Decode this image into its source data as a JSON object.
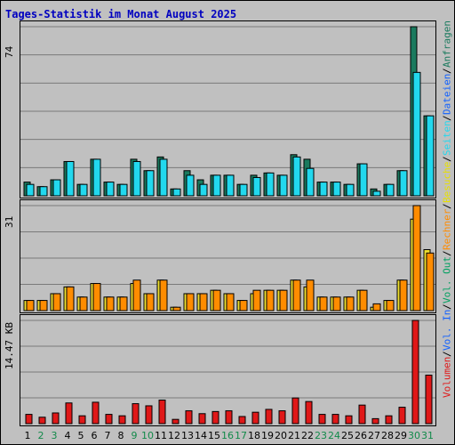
{
  "title": "Tages-Statistik im Monat August 2025",
  "colors": {
    "background": "#c0c0c0",
    "title": "#0000c0",
    "anfragen": "#1a7a5e",
    "dateien": "#22d8ee",
    "seiten": "#22d8ee",
    "besuche": "#f0e030",
    "rechner": "#ff8c00",
    "volumen": "#e01818",
    "weekday_label": "#000000",
    "weekend_label": "#128a4a",
    "gridline": "#7a7a7a"
  },
  "legend": [
    {
      "text": "Anfragen",
      "color": "#1a7a5e"
    },
    {
      "text": " / ",
      "color": "#000000"
    },
    {
      "text": "Dateien",
      "color": "#1060ff"
    },
    {
      "text": " / ",
      "color": "#000000"
    },
    {
      "text": "Seiten",
      "color": "#22d8ee"
    },
    {
      "text": " / ",
      "color": "#000000"
    },
    {
      "text": "Besuche",
      "color": "#e8e000"
    },
    {
      "text": " / ",
      "color": "#000000"
    },
    {
      "text": "Rechner",
      "color": "#ff8c00"
    },
    {
      "text": " / ",
      "color": "#000000"
    },
    {
      "text": "Vol. Out",
      "color": "#00a060"
    },
    {
      "text": " / ",
      "color": "#000000"
    },
    {
      "text": "Vol. In",
      "color": "#1060ff"
    },
    {
      "text": " / ",
      "color": "#000000"
    },
    {
      "text": "Volumen",
      "color": "#e01818"
    }
  ],
  "chart_data": [
    {
      "type": "bar",
      "panel": "top",
      "ymax_label": "74",
      "ylim": [
        0,
        74
      ],
      "categories": [
        "1",
        "2",
        "3",
        "4",
        "5",
        "6",
        "7",
        "8",
        "9",
        "10",
        "11",
        "12",
        "13",
        "14",
        "15",
        "16",
        "17",
        "18",
        "19",
        "20",
        "21",
        "22",
        "23",
        "24",
        "25",
        "26",
        "27",
        "28",
        "29",
        "30",
        "31"
      ],
      "series": [
        {
          "name": "Anfragen",
          "values": [
            6,
            4,
            7,
            15,
            5,
            16,
            6,
            5,
            16,
            11,
            17,
            3,
            11,
            7,
            9,
            9,
            5,
            9,
            10,
            9,
            18,
            16,
            6,
            6,
            5,
            14,
            3,
            5,
            11,
            74,
            35
          ]
        },
        {
          "name": "Dateien",
          "values": [
            5,
            4,
            7,
            15,
            5,
            16,
            6,
            5,
            15,
            11,
            16,
            3,
            9,
            5,
            9,
            9,
            5,
            8,
            10,
            9,
            17,
            12,
            6,
            6,
            5,
            14,
            2,
            5,
            11,
            54,
            35
          ]
        }
      ]
    },
    {
      "type": "bar",
      "panel": "middle",
      "ymax_label": "31",
      "ylim": [
        0,
        31
      ],
      "categories": [
        "1",
        "2",
        "3",
        "4",
        "5",
        "6",
        "7",
        "8",
        "9",
        "10",
        "11",
        "12",
        "13",
        "14",
        "15",
        "16",
        "17",
        "18",
        "19",
        "20",
        "21",
        "22",
        "23",
        "24",
        "25",
        "26",
        "27",
        "28",
        "29",
        "30",
        "31"
      ],
      "series": [
        {
          "name": "Besuche",
          "values": [
            3,
            3,
            5,
            7,
            4,
            8,
            4,
            4,
            8,
            5,
            9,
            1,
            5,
            5,
            6,
            5,
            3,
            5,
            6,
            6,
            9,
            7,
            4,
            4,
            4,
            6,
            1,
            3,
            9,
            27,
            18
          ]
        },
        {
          "name": "Rechner",
          "values": [
            3,
            3,
            5,
            7,
            4,
            8,
            4,
            4,
            9,
            5,
            9,
            1,
            5,
            5,
            6,
            5,
            3,
            6,
            6,
            6,
            9,
            9,
            4,
            4,
            4,
            6,
            2,
            3,
            9,
            31,
            17
          ]
        }
      ]
    },
    {
      "type": "bar",
      "panel": "bottom",
      "ymax_label": "14.47 KB",
      "ylim": [
        0,
        14.47
      ],
      "categories": [
        "1",
        "2",
        "3",
        "4",
        "5",
        "6",
        "7",
        "8",
        "9",
        "10",
        "11",
        "12",
        "13",
        "14",
        "15",
        "16",
        "17",
        "18",
        "19",
        "20",
        "21",
        "22",
        "23",
        "24",
        "25",
        "26",
        "27",
        "28",
        "29",
        "30",
        "31"
      ],
      "series": [
        {
          "name": "Volumen",
          "values": [
            1.3,
            0.9,
            1.5,
            2.9,
            1.1,
            3.0,
            1.3,
            1.1,
            2.8,
            2.5,
            3.3,
            0.6,
            1.8,
            1.4,
            1.7,
            1.8,
            1.0,
            1.6,
            2.0,
            1.8,
            3.6,
            3.1,
            1.3,
            1.3,
            1.1,
            2.6,
            0.7,
            1.1,
            2.3,
            14.47,
            6.8
          ]
        }
      ]
    }
  ],
  "weekend_days": [
    "2",
    "3",
    "9",
    "10",
    "16",
    "17",
    "23",
    "24",
    "30",
    "31"
  ]
}
